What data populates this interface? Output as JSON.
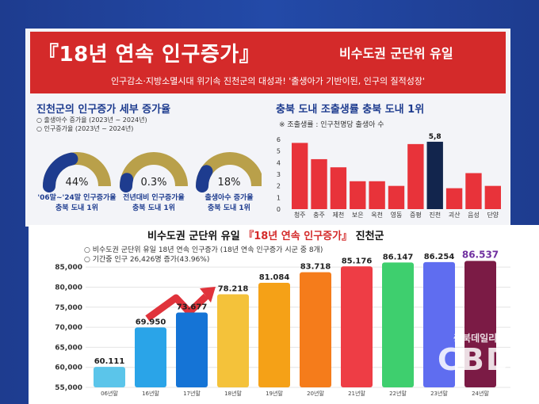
{
  "header": {
    "title": "『18년 연속 인구증가』",
    "subtitle": "비수도권 군단위 유일",
    "tagline": "인구감소·지방소멸시대 위기속 진천군의 대성과! '출생아가 기반이된, 인구의 질적성장'"
  },
  "left_section": {
    "title": "진천군의 인구증가 세부 증가율",
    "notes": [
      "○ 출생아수 증가율 (2023년 ~ 2024년)",
      "○ 인구증가율 (2023년 ~ 2024년)"
    ],
    "donuts": [
      {
        "value": 44,
        "pct_label": "44%",
        "label": "'06말~'24말 인구증가율",
        "rank": "충북 도내 1위"
      },
      {
        "value": 0.3,
        "pct_label": "0.3%",
        "label": "전년대비 인구증가율",
        "rank": "충북 도내 1위"
      },
      {
        "value": 18,
        "pct_label": "18%",
        "label": "출생아수 증가율",
        "rank": "충북 도내 1위"
      }
    ],
    "colors": {
      "fill": "#1e3c8f",
      "track": "#b9a04a"
    }
  },
  "chart_data": [
    {
      "type": "bar",
      "title": "충북 도내 조출생률 충북 도내 1위",
      "note": "※ 조출생률 : 인구천명당 출생아 수",
      "categories": [
        "청주",
        "충주",
        "제천",
        "보은",
        "옥천",
        "영동",
        "증평",
        "진천",
        "괴산",
        "음성",
        "단양"
      ],
      "values": [
        5.7,
        4.3,
        3.6,
        2.4,
        2.4,
        2.0,
        5.6,
        5.8,
        1.8,
        3.1,
        2.0
      ],
      "highlight": {
        "category": "진천",
        "label": "5,8"
      },
      "ylim": [
        0,
        6
      ],
      "yticks": [
        "0",
        "1",
        "2",
        "3",
        "4",
        "5",
        "6"
      ],
      "colors": {
        "bar": "#e8333a",
        "highlight": "#12254d"
      }
    },
    {
      "type": "bar",
      "title_prefix": "비수도권 군단위 유일 ",
      "title_highlight": "『18년 연속 인구증가』",
      "title_suffix": " 진천군",
      "notes": [
        "○ 비수도권 군단위 유일 18년 연속 인구증가 (18년 연속 인구증가 시군 중 8개)",
        "○ 기간중 인구 26,426명 증가(43.96%)"
      ],
      "categories": [
        "06년말",
        "16년말",
        "17년말",
        "18년말",
        "19년말",
        "20년말",
        "21년말",
        "22년말",
        "23년말",
        "24년말"
      ],
      "values": [
        60.111,
        69.95,
        73.677,
        78.218,
        81.084,
        83.718,
        85.176,
        86.147,
        86.254,
        86.537
      ],
      "value_labels": [
        "60.111",
        "69.950",
        "73.677",
        "78.218",
        "81.084",
        "83.718",
        "85.176",
        "86.147",
        "86.254",
        "86.537"
      ],
      "ylim": [
        55,
        88
      ],
      "yticks": [
        "55,000",
        "60,000",
        "65,000",
        "70,000",
        "75,000",
        "80,000",
        "85,000"
      ],
      "colors": [
        "#5bc5ea",
        "#2aa4e8",
        "#1574d6",
        "#f4c23a",
        "#f5a117",
        "#f57c1b",
        "#ee3d45",
        "#3ecf6e",
        "#5f6df0",
        "#7b1b45"
      ],
      "highlight_label_color": "#7030a0"
    }
  ],
  "watermark": {
    "top": "충북데일리",
    "bottom": "CBD"
  }
}
